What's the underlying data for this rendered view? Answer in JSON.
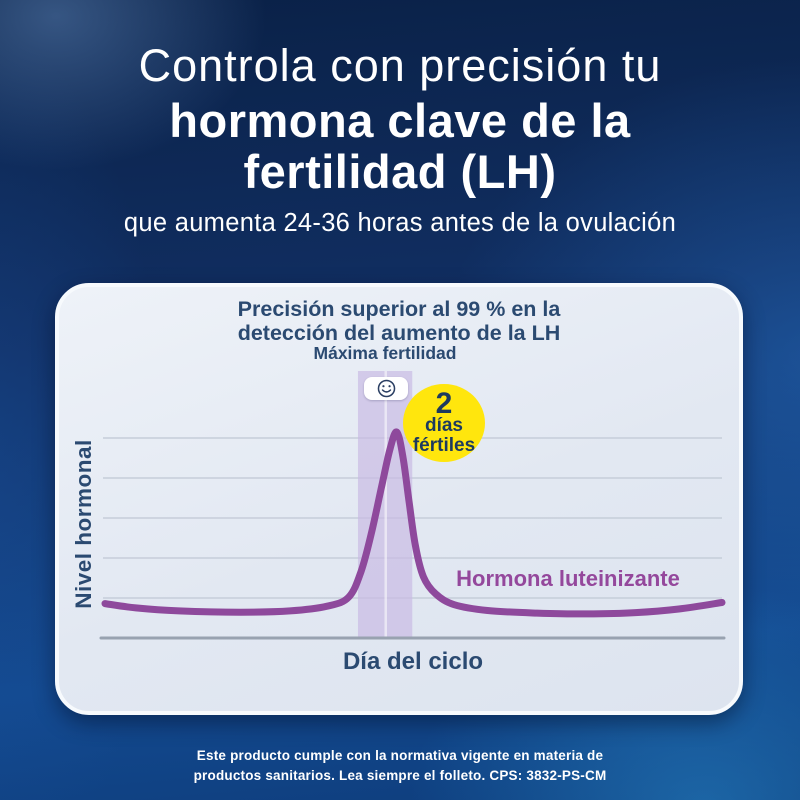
{
  "colors": {
    "background_navy": "#0a2147",
    "background_blue": "#134a90",
    "card_bg": "#e6ebf4",
    "navy_text": "#2b4a71",
    "purple_line": "#8e499c",
    "purple_label": "#94489c",
    "band_lavender": "#c9b9e3",
    "badge_yellow": "#ffe60d",
    "badge_text": "#1d3a5f",
    "gridline": "#c6cdd9",
    "axis": "#98a2b0",
    "white": "#ffffff"
  },
  "headline": {
    "light_line": "Controla con precisión tu",
    "bold_line1": "hormona clave de la",
    "bold_line2": "fertilidad (LH)",
    "subtitle": "que aumenta 24-36 horas antes de la ovulación"
  },
  "card": {
    "title_line1": "Precisión superior al 99 % en la",
    "title_line2": "detección del aumento de la LH"
  },
  "chart_data": {
    "type": "line",
    "title": "Precisión superior al 99 % en la detección del aumento de la LH",
    "xlabel": "Día del ciclo",
    "ylabel": "Nivel hormonal",
    "grid": true,
    "gridlines": 5,
    "x_axis_ticks": [],
    "y_axis_ticks": [],
    "series": [
      {
        "name": "Hormona luteinizante",
        "color": "#8e499c",
        "points": [
          [
            0.0,
            0.16
          ],
          [
            0.05,
            0.14
          ],
          [
            0.12,
            0.126
          ],
          [
            0.22,
            0.12
          ],
          [
            0.3,
            0.126
          ],
          [
            0.36,
            0.148
          ],
          [
            0.395,
            0.19
          ],
          [
            0.415,
            0.31
          ],
          [
            0.432,
            0.49
          ],
          [
            0.448,
            0.7
          ],
          [
            0.462,
            0.88
          ],
          [
            0.473,
            0.958
          ],
          [
            0.483,
            0.84
          ],
          [
            0.493,
            0.63
          ],
          [
            0.503,
            0.43
          ],
          [
            0.516,
            0.285
          ],
          [
            0.536,
            0.205
          ],
          [
            0.566,
            0.155
          ],
          [
            0.62,
            0.128
          ],
          [
            0.7,
            0.116
          ],
          [
            0.78,
            0.112
          ],
          [
            0.86,
            0.118
          ],
          [
            0.93,
            0.135
          ],
          [
            1.0,
            0.165
          ]
        ]
      }
    ],
    "fertile_window": {
      "label": "Máxima fertilidad",
      "x_start": 0.41,
      "x_end": 0.498,
      "divider_x": 0.455,
      "band_color": "#c9b9e3",
      "smiley_icon": "smiley-face",
      "badge": {
        "value": "2",
        "unit_line1": "días",
        "unit_line2": "fértiles"
      }
    }
  },
  "footer": {
    "line1": "Este producto cumple con la normativa vigente en materia de",
    "line2": "productos sanitarios. Lea siempre el folleto. CPS: 3832-PS-CM"
  }
}
